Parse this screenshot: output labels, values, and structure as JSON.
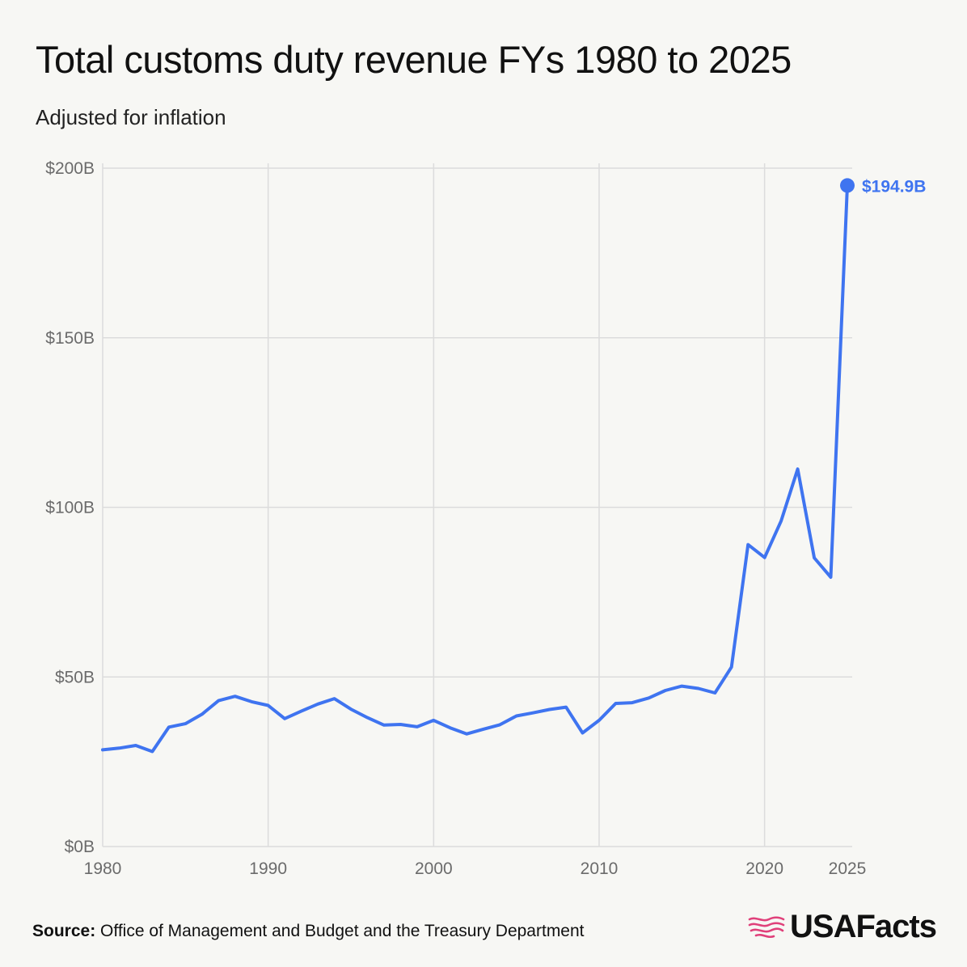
{
  "header": {
    "title": "Total customs duty revenue FYs 1980 to 2025",
    "subtitle": "Adjusted for inflation"
  },
  "footer": {
    "source_label": "Source:",
    "source_text": "Office of Management and Budget and the Treasury Department",
    "logo_text": "USAFacts",
    "logo_icon": "usafacts-flag-map-icon"
  },
  "colors": {
    "line": "#3f74f0",
    "grid": "#dcdcdc",
    "logo_accent": "#e0407a"
  },
  "chart_data": {
    "type": "line",
    "title": "Total customs duty revenue FYs 1980 to 2025",
    "subtitle": "Adjusted for inflation",
    "xlabel": "",
    "ylabel": "",
    "xlim": [
      1980,
      2025
    ],
    "ylim": [
      0,
      200
    ],
    "grid": true,
    "x_ticks": [
      1980,
      1990,
      2000,
      2010,
      2020,
      2025
    ],
    "y_ticks": [
      0,
      50,
      100,
      150,
      200
    ],
    "y_tick_labels": [
      "$0B",
      "$50B",
      "$100B",
      "$150B",
      "$200B"
    ],
    "end_label": "$194.9B",
    "series": [
      {
        "x": [
          1980,
          1981,
          1982,
          1983,
          1984,
          1985,
          1986,
          1987,
          1988,
          1989,
          1990,
          1991,
          1992,
          1993,
          1994,
          1995,
          1996,
          1997,
          1998,
          1999,
          2000,
          2001,
          2002,
          2003,
          2004,
          2005,
          2006,
          2007,
          2008,
          2009,
          2010,
          2011,
          2012,
          2013,
          2014,
          2015,
          2016,
          2017,
          2018,
          2019,
          2020,
          2021,
          2022,
          2023,
          2024,
          2025
        ],
        "values": [
          28.5,
          29,
          29.8,
          28,
          35.2,
          36.2,
          39,
          43,
          44.3,
          42.7,
          41.6,
          37.7,
          39.9,
          42,
          43.6,
          40.5,
          38,
          35.8,
          36,
          35.3,
          37.2,
          35,
          33.2,
          34.6,
          35.9,
          38.5,
          39.4,
          40.4,
          41.1,
          33.5,
          37.2,
          42.2,
          42.4,
          43.8,
          46,
          47.3,
          46.6,
          45.3,
          52.9,
          89,
          85.2,
          96,
          111.3,
          85.1,
          79.4,
          194.9
        ]
      }
    ]
  }
}
